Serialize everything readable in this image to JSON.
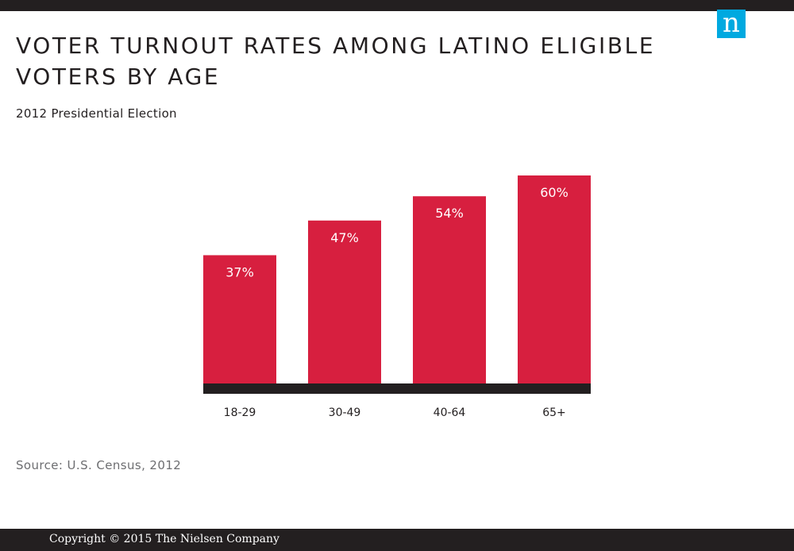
{
  "title": "VOTER TURNOUT RATES AMONG LATINO ELIGIBLE VOTERS BY AGE",
  "subtitle": "2012 Presidential Election",
  "source": "Source: U.S. Census, 2012",
  "footer": "Copyright © 2015 The Nielsen Company",
  "logo": {
    "letter": "n",
    "icon": "nielsen-logo-icon",
    "color": "#00a9e0"
  },
  "colors": {
    "bar": "#d71f3f",
    "axis": "#231f20",
    "text": "#231f20",
    "source_text": "#6d6e71"
  },
  "chart_data": {
    "type": "bar",
    "title": "VOTER TURNOUT RATES AMONG LATINO ELIGIBLE VOTERS BY AGE",
    "subtitle": "2012 Presidential Election",
    "categories": [
      "18-29",
      "30-49",
      "40-64",
      "65+"
    ],
    "values": [
      37,
      47,
      54,
      60
    ],
    "labels": [
      "37%",
      "47%",
      "54%",
      "60%"
    ],
    "unit": "%",
    "xlabel": "",
    "ylabel": "",
    "ylim": [
      0,
      60
    ],
    "grid": false,
    "legend": "none"
  }
}
